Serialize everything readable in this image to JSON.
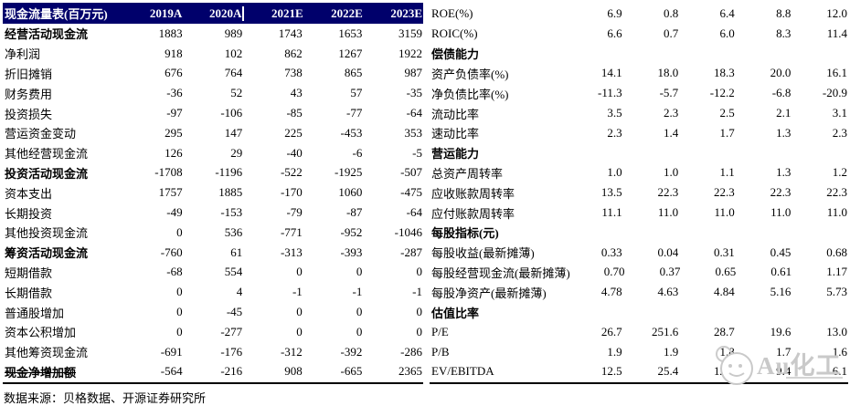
{
  "colors": {
    "header_bg": "#00006B",
    "header_text": "#FFFFFF",
    "table_border": "#000000",
    "watermark": "#C9C9C9"
  },
  "left_table": {
    "title": "现金流量表(百万元)",
    "columns": [
      "2019A",
      "2020A",
      "2021E",
      "2022E",
      "2023E"
    ],
    "rows": [
      {
        "label": "经营活动现金流",
        "bold": true,
        "values": [
          "1883",
          "989",
          "1743",
          "1653",
          "3159"
        ]
      },
      {
        "label": "净利润",
        "bold": false,
        "values": [
          "918",
          "102",
          "862",
          "1267",
          "1922"
        ]
      },
      {
        "label": "折旧摊销",
        "bold": false,
        "values": [
          "676",
          "764",
          "738",
          "865",
          "987"
        ]
      },
      {
        "label": "财务费用",
        "bold": false,
        "values": [
          "-36",
          "52",
          "43",
          "57",
          "-35"
        ]
      },
      {
        "label": "投资损失",
        "bold": false,
        "values": [
          "-97",
          "-106",
          "-85",
          "-77",
          "-64"
        ]
      },
      {
        "label": "营运资金变动",
        "bold": false,
        "values": [
          "295",
          "147",
          "225",
          "-453",
          "353"
        ]
      },
      {
        "label": "其他经营现金流",
        "bold": false,
        "values": [
          "126",
          "29",
          "-40",
          "-6",
          "-5"
        ]
      },
      {
        "label": "投资活动现金流",
        "bold": true,
        "values": [
          "-1708",
          "-1196",
          "-522",
          "-1925",
          "-507"
        ]
      },
      {
        "label": "资本支出",
        "bold": false,
        "values": [
          "1757",
          "1885",
          "-170",
          "1060",
          "-475"
        ]
      },
      {
        "label": "长期投资",
        "bold": false,
        "values": [
          "-49",
          "-153",
          "-79",
          "-87",
          "-64"
        ]
      },
      {
        "label": "其他投资现金流",
        "bold": false,
        "values": [
          "0",
          "536",
          "-771",
          "-952",
          "-1046"
        ]
      },
      {
        "label": "筹资活动现金流",
        "bold": true,
        "values": [
          "-760",
          "61",
          "-313",
          "-393",
          "-287"
        ]
      },
      {
        "label": "短期借款",
        "bold": false,
        "values": [
          "-68",
          "554",
          "0",
          "0",
          "0"
        ]
      },
      {
        "label": "长期借款",
        "bold": false,
        "values": [
          "0",
          "4",
          "-1",
          "-1",
          "-1"
        ]
      },
      {
        "label": "普通股增加",
        "bold": false,
        "values": [
          "0",
          "-45",
          "0",
          "0",
          "0"
        ]
      },
      {
        "label": "资本公积增加",
        "bold": false,
        "values": [
          "0",
          "-277",
          "0",
          "0",
          "0"
        ]
      },
      {
        "label": "其他筹资现金流",
        "bold": false,
        "values": [
          "-691",
          "-176",
          "-312",
          "-392",
          "-286"
        ]
      },
      {
        "label": "现金净增加额",
        "bold": true,
        "values": [
          "-564",
          "-216",
          "908",
          "-665",
          "2365"
        ]
      }
    ],
    "source_note": "数据来源：贝格数据、开源证券研究所"
  },
  "right_table": {
    "rows": [
      {
        "label": "ROE(%)",
        "bold": false,
        "values": [
          "6.9",
          "0.8",
          "6.4",
          "8.8",
          "12.0"
        ]
      },
      {
        "label": "ROIC(%)",
        "bold": false,
        "values": [
          "6.6",
          "0.7",
          "6.0",
          "8.3",
          "11.4"
        ]
      },
      {
        "label": "偿债能力",
        "bold": true,
        "values": [
          "",
          "",
          "",
          "",
          ""
        ]
      },
      {
        "label": "资产负债率(%)",
        "bold": false,
        "values": [
          "14.1",
          "18.0",
          "18.3",
          "20.0",
          "16.1"
        ]
      },
      {
        "label": "净负债比率(%)",
        "bold": false,
        "values": [
          "-11.3",
          "-5.7",
          "-12.2",
          "-6.8",
          "-20.9"
        ]
      },
      {
        "label": "流动比率",
        "bold": false,
        "values": [
          "3.5",
          "2.3",
          "2.5",
          "2.1",
          "3.1"
        ]
      },
      {
        "label": "速动比率",
        "bold": false,
        "values": [
          "2.3",
          "1.4",
          "1.7",
          "1.3",
          "2.3"
        ]
      },
      {
        "label": "营运能力",
        "bold": true,
        "values": [
          "",
          "",
          "",
          "",
          ""
        ]
      },
      {
        "label": "总资产周转率",
        "bold": false,
        "values": [
          "1.0",
          "1.0",
          "1.1",
          "1.3",
          "1.2"
        ]
      },
      {
        "label": "应收账款周转率",
        "bold": false,
        "values": [
          "13.5",
          "22.3",
          "22.3",
          "22.3",
          "22.3"
        ]
      },
      {
        "label": "应付账款周转率",
        "bold": false,
        "values": [
          "11.1",
          "11.0",
          "11.0",
          "11.0",
          "11.0"
        ]
      },
      {
        "label": "每股指标(元)",
        "bold": true,
        "values": [
          "",
          "",
          "",
          "",
          ""
        ]
      },
      {
        "label": "每股收益(最新摊薄)",
        "bold": false,
        "values": [
          "0.33",
          "0.04",
          "0.31",
          "0.45",
          "0.68"
        ]
      },
      {
        "label": "每股经营现金流(最新摊薄)",
        "bold": false,
        "values": [
          "0.70",
          "0.37",
          "0.65",
          "0.61",
          "1.17"
        ]
      },
      {
        "label": "每股净资产(最新摊薄)",
        "bold": false,
        "values": [
          "4.78",
          "4.63",
          "4.84",
          "5.16",
          "5.73"
        ]
      },
      {
        "label": "估值比率",
        "bold": true,
        "values": [
          "",
          "",
          "",
          "",
          ""
        ]
      },
      {
        "label": "P/E",
        "bold": false,
        "values": [
          "26.7",
          "251.6",
          "28.7",
          "19.6",
          "13.0"
        ]
      },
      {
        "label": "P/B",
        "bold": false,
        "values": [
          "1.9",
          "1.9",
          "1.8",
          "1.7",
          "1.6"
        ]
      },
      {
        "label": "EV/EBITDA",
        "bold": false,
        "values": [
          "12.5",
          "25.4",
          "12.2",
          "9.4",
          "6.1"
        ]
      }
    ]
  },
  "watermark": {
    "text": "Au化工",
    "icon": "smiley-logo-icon"
  }
}
